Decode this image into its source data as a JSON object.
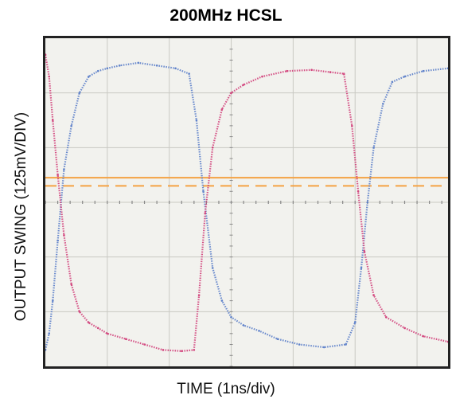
{
  "chart_data": {
    "type": "line",
    "title": "200MHz HCSL",
    "xlabel": "TIME (1ns/div)",
    "ylabel": "OUTPUT SWING (125mV/DIV)",
    "xlim": [
      0,
      6.5
    ],
    "ylim": [
      -3,
      3
    ],
    "grid": true,
    "divisions": {
      "x": 6.5,
      "y": 6
    },
    "background": "#f2f2ee",
    "series": [
      {
        "color": "#5b7ec9",
        "x": [
          0,
          0.06,
          0.12,
          0.2,
          0.3,
          0.42,
          0.55,
          0.7,
          0.85,
          1.0,
          1.2,
          1.5,
          1.8,
          2.1,
          2.32,
          2.44,
          2.55,
          2.7,
          2.85,
          3.0,
          3.2,
          3.45,
          3.75,
          4.1,
          4.5,
          4.85,
          5.0,
          5.1,
          5.2,
          5.3,
          5.45,
          5.6,
          5.8,
          6.1,
          6.5
        ],
        "y": [
          -2.7,
          -2.4,
          -1.8,
          -0.7,
          0.6,
          1.4,
          2.0,
          2.3,
          2.4,
          2.45,
          2.5,
          2.55,
          2.5,
          2.45,
          2.35,
          1.5,
          0.2,
          -1.2,
          -1.8,
          -2.1,
          -2.25,
          -2.35,
          -2.5,
          -2.6,
          -2.65,
          -2.6,
          -2.2,
          -1.2,
          0.0,
          1.0,
          1.8,
          2.2,
          2.3,
          2.4,
          2.45
        ]
      },
      {
        "color": "#d1407a",
        "x": [
          0,
          0.06,
          0.12,
          0.2,
          0.3,
          0.42,
          0.55,
          0.7,
          0.85,
          1.0,
          1.3,
          1.6,
          1.9,
          2.2,
          2.4,
          2.48,
          2.58,
          2.7,
          2.85,
          3.0,
          3.2,
          3.5,
          3.9,
          4.3,
          4.6,
          4.82,
          4.95,
          5.05,
          5.15,
          5.3,
          5.5,
          5.8,
          6.1,
          6.5
        ],
        "y": [
          2.7,
          2.3,
          1.5,
          0.5,
          -0.6,
          -1.5,
          -2.0,
          -2.2,
          -2.3,
          -2.4,
          -2.5,
          -2.6,
          -2.7,
          -2.72,
          -2.7,
          -1.7,
          -0.2,
          1.0,
          1.7,
          2.0,
          2.15,
          2.3,
          2.4,
          2.42,
          2.38,
          2.35,
          1.4,
          0.2,
          -0.9,
          -1.7,
          -2.1,
          -2.3,
          -2.45,
          -2.55
        ]
      }
    ],
    "reference_lines": [
      {
        "y": 0.45,
        "color": "#f5a243",
        "style": "solid"
      },
      {
        "y": 0.3,
        "color": "#f5a243",
        "style": "dashed"
      }
    ]
  }
}
